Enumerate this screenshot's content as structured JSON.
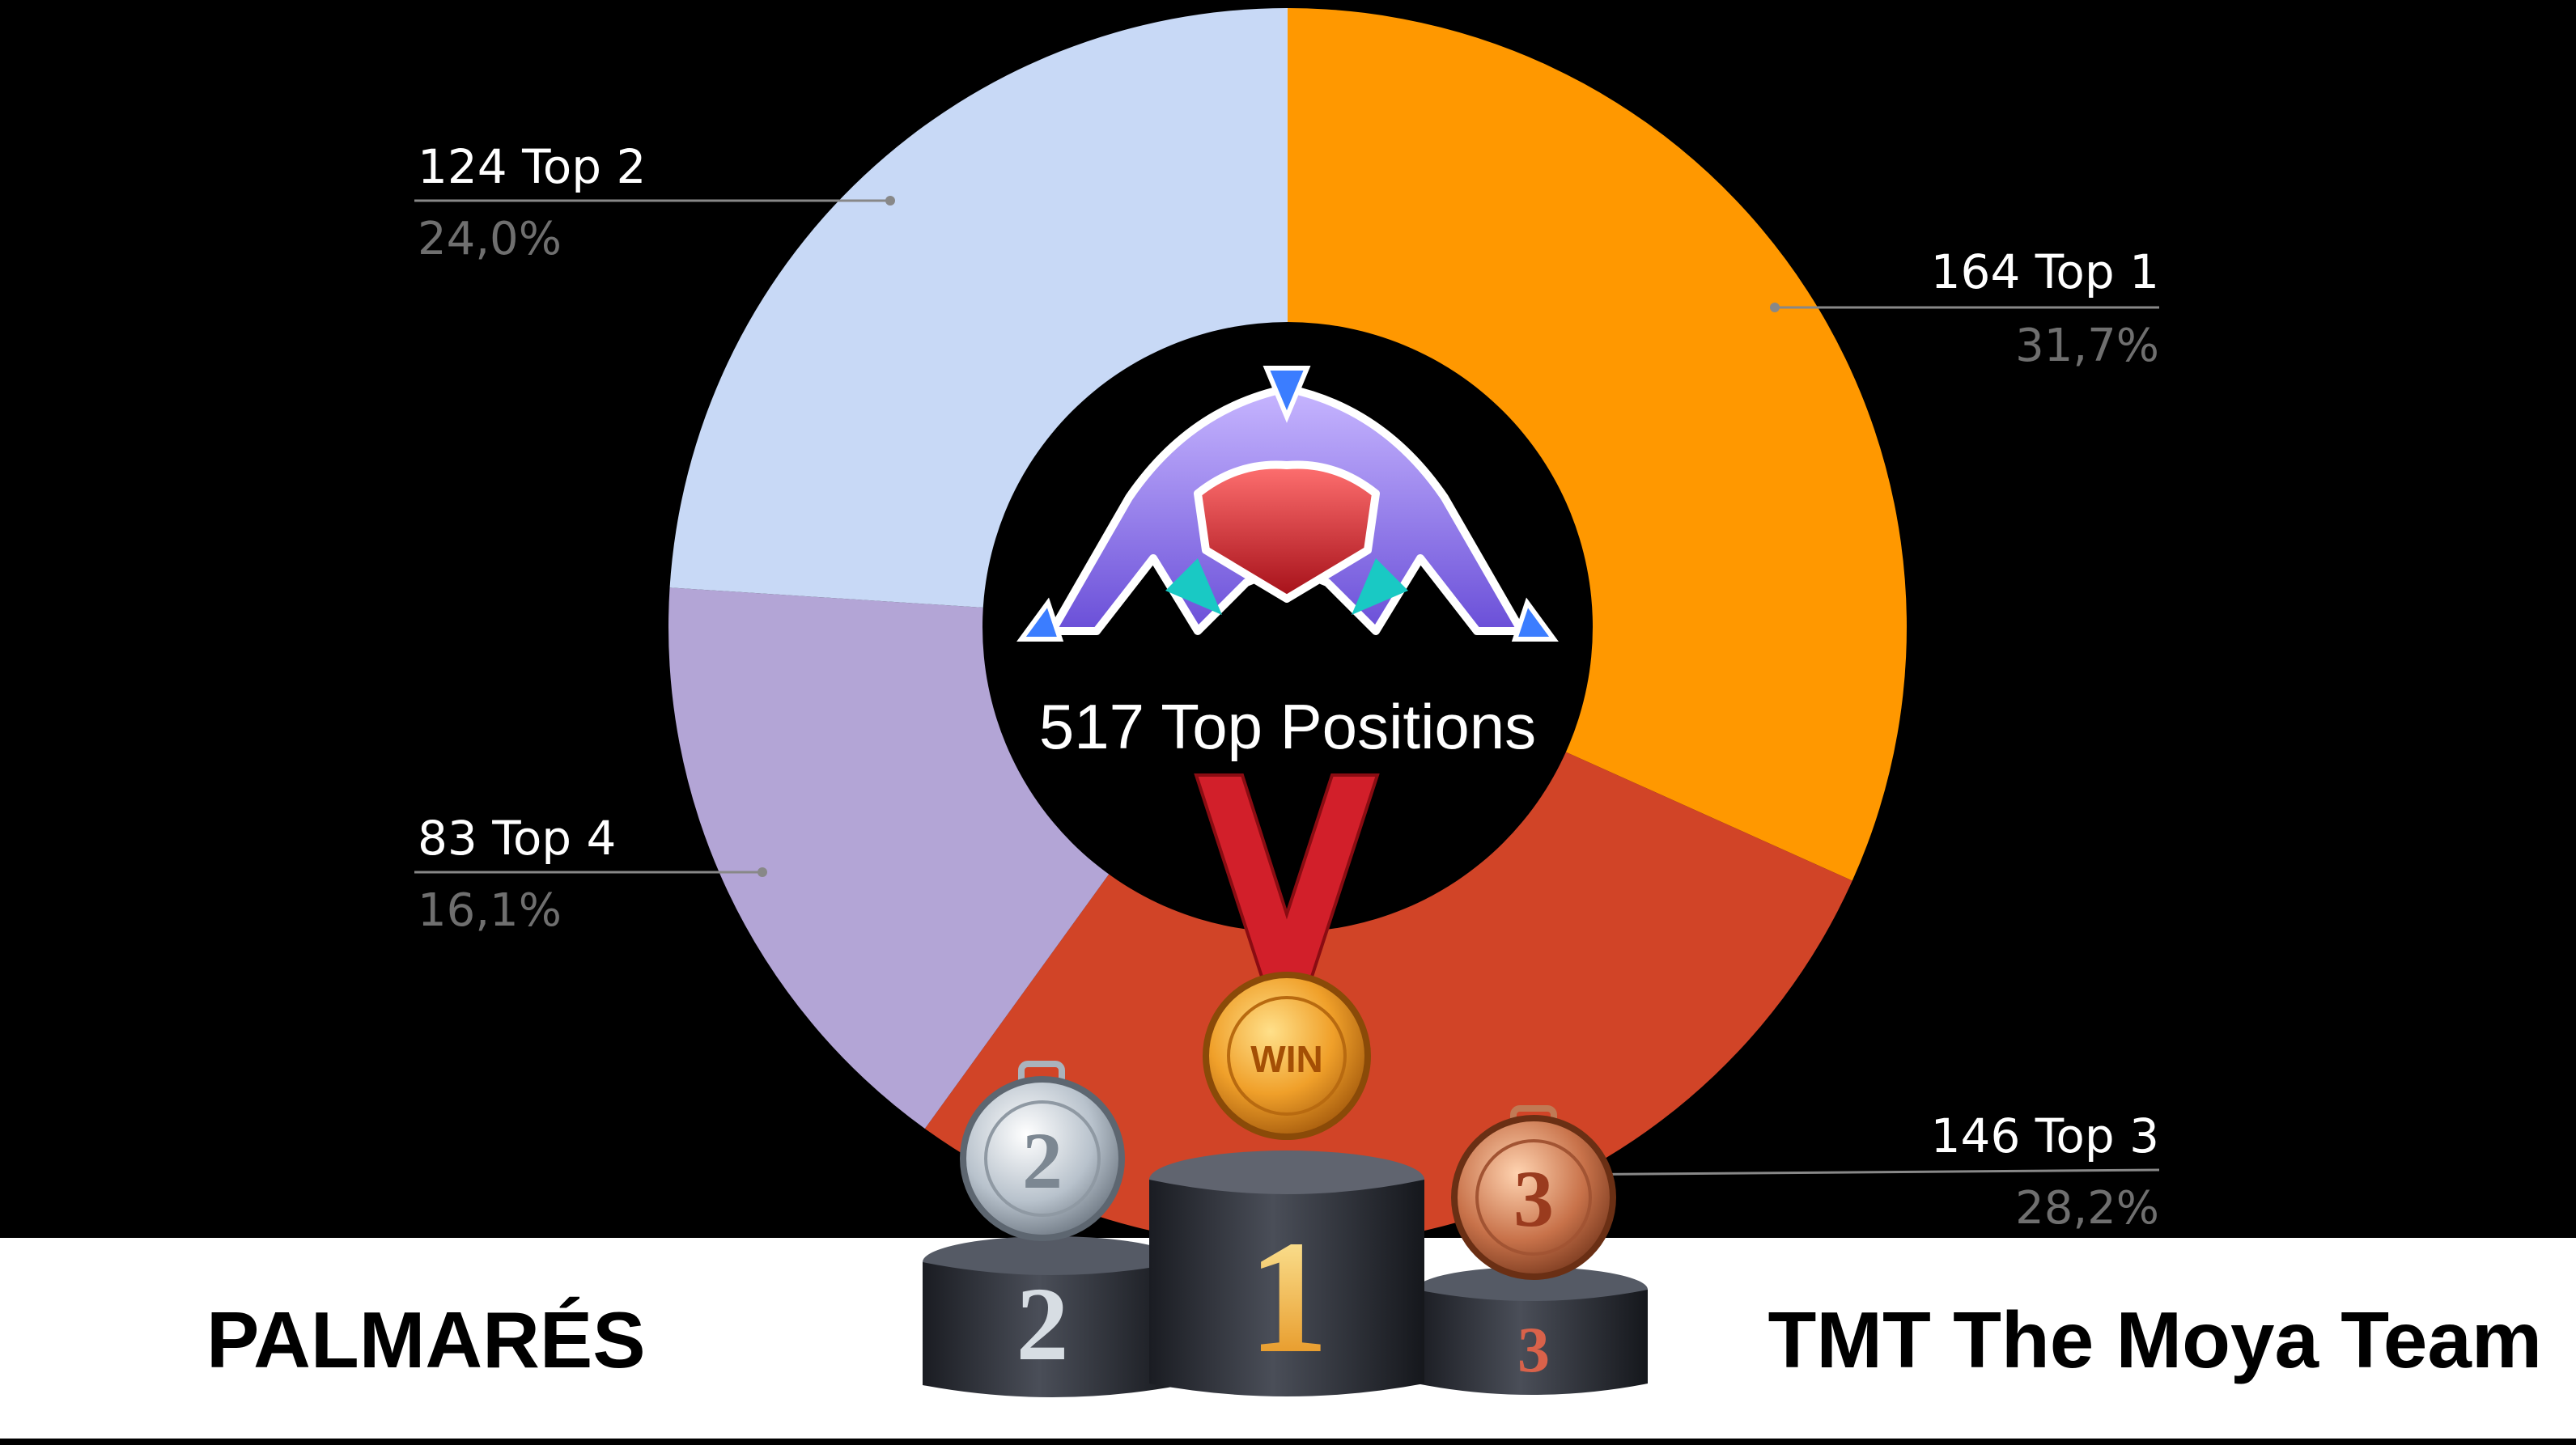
{
  "chart_data": {
    "type": "pie",
    "style": "donut",
    "total_label": "517 Top Positions",
    "slices": [
      {
        "name": "Top 1",
        "value": 164,
        "label": "164 Top 1",
        "percent": "31,7%",
        "color": "#ff9800"
      },
      {
        "name": "Top 3",
        "value": 146,
        "label": "146 Top 3",
        "percent": "28,2%",
        "color": "#d14427"
      },
      {
        "name": "Top 4",
        "value": 83,
        "label": "83 Top 4",
        "percent": "16,1%",
        "color": "#b3a5d6"
      },
      {
        "name": "Top 2",
        "value": 124,
        "label": "124 Top 2",
        "percent": "24,0%",
        "color": "#c8d9f6"
      }
    ]
  },
  "logo": {
    "icon": "tmt-logo-icon"
  },
  "podium": {
    "icon": "podium-with-medals-icon",
    "places": [
      "1",
      "2",
      "3"
    ],
    "medal_win_text": "WIN",
    "medal_silver_text": "2",
    "medal_bronze_text": "3"
  },
  "footer": {
    "left_title": "PALMARÉS",
    "right_title": "TMT The Moya Team"
  }
}
